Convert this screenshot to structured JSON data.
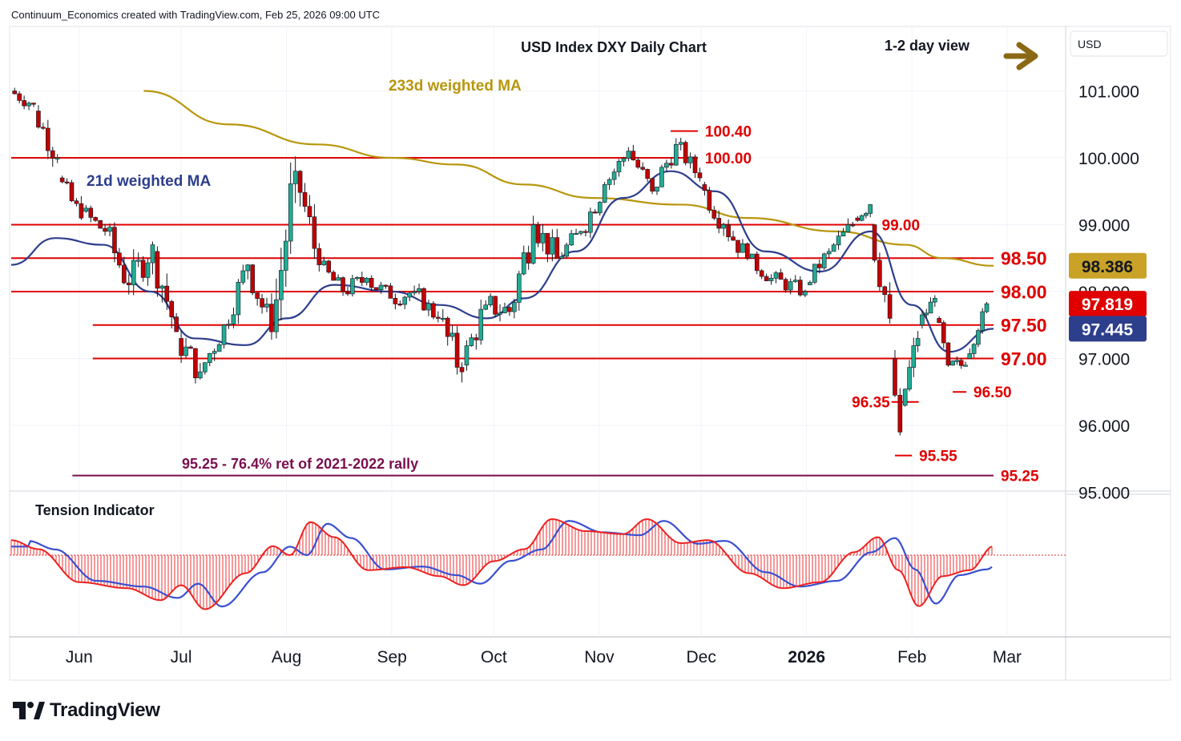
{
  "header": {
    "attribution": "Continuum_Economics created with TradingView.com, Feb 25, 2026 09:00 UTC"
  },
  "chart": {
    "title": "USD Index DXY Daily Chart",
    "view": "1-2 day view",
    "currency": "USD",
    "ma233_label": "233d weighted MA",
    "ma21_label": "21d weighted MA",
    "fib_label": "95.25 - 76.4% ret of 2021-2022 rally",
    "indicator_title": "Tension Indicator",
    "brand": "TradingView",
    "x_labels": [
      "Jun",
      "Jul",
      "Aug",
      "Sep",
      "Oct",
      "Nov",
      "Dec",
      "2026",
      "Feb",
      "Mar"
    ],
    "y_ticks": [
      "101.000",
      "100.000",
      "99.000",
      "98.000",
      "97.000",
      "96.000",
      "95.000"
    ],
    "badges": [
      {
        "label": "98.386",
        "value": 98.386,
        "color": "#c9a227",
        "text_color": "#131722"
      },
      {
        "label": "97.819",
        "value": 97.819,
        "color": "#e00000",
        "text_color": "#ffffff"
      },
      {
        "label": "97.445",
        "value": 97.445,
        "color": "#2d3e8c",
        "text_color": "#ffffff"
      }
    ],
    "colors": {
      "up": "#22ab94",
      "down": "#c10000",
      "ma233": "#b8960c",
      "ma21": "#2d3e8c",
      "levels": "#e00000",
      "fib": "#7a0f4e",
      "tension_hist": "#ee3333",
      "tension_line": "#ee2222",
      "tension_signal": "#3a4fd0",
      "arrow": "#8b6914"
    }
  },
  "chart_data": {
    "type": "candlestick",
    "title": "USD Index DXY Daily Chart",
    "y_unit": "USD",
    "ylim": [
      95.0,
      101.8
    ],
    "x_range": [
      "2025-05-12",
      "2026-02-25"
    ],
    "horizontal_levels": [
      {
        "value": 100.4,
        "label": "100.40",
        "from": "2025-11-22",
        "to": "2025-11-30"
      },
      {
        "value": 100.0,
        "label": "100.00",
        "from": "2025-05-12",
        "to": "2025-11-30"
      },
      {
        "value": 99.0,
        "label": "99.00",
        "from": "2025-05-12",
        "to": "2026-01-21"
      },
      {
        "value": 98.5,
        "label": "98.50",
        "from": "2025-05-12",
        "to": "2026-02-25"
      },
      {
        "value": 98.0,
        "label": "98.00",
        "from": "2025-05-12",
        "to": "2026-02-25"
      },
      {
        "value": 97.5,
        "label": "97.50",
        "from": "2025-06-05",
        "to": "2026-02-25"
      },
      {
        "value": 97.0,
        "label": "97.00",
        "from": "2025-06-05",
        "to": "2026-02-25"
      },
      {
        "value": 96.5,
        "label": "96.50",
        "from": "2026-02-13",
        "to": "2026-02-17"
      },
      {
        "value": 96.35,
        "label": "96.35",
        "from": "2026-01-26",
        "to": "2026-02-03"
      },
      {
        "value": 95.55,
        "label": "95.55",
        "from": "2026-01-27",
        "to": "2026-02-01"
      },
      {
        "value": 95.25,
        "label": "95.25",
        "from": "2025-05-30",
        "to": "2026-02-25"
      }
    ],
    "fib_note": "95.25 - 76.4% ret of 2021-2022 rally",
    "ma233": {
      "name": "233d weighted MA",
      "points": [
        [
          "2025-06-20",
          101.0
        ],
        [
          "2025-07-15",
          100.5
        ],
        [
          "2025-08-10",
          100.2
        ],
        [
          "2025-09-01",
          100.0
        ],
        [
          "2025-09-20",
          99.9
        ],
        [
          "2025-10-10",
          99.6
        ],
        [
          "2025-10-30",
          99.4
        ],
        [
          "2025-11-25",
          99.3
        ],
        [
          "2025-12-15",
          99.1
        ],
        [
          "2026-01-10",
          98.9
        ],
        [
          "2026-01-30",
          98.7
        ],
        [
          "2026-02-10",
          98.5
        ],
        [
          "2026-02-25",
          98.386
        ]
      ]
    },
    "ma21": {
      "name": "21d weighted MA",
      "points": [
        [
          "2025-05-12",
          98.4
        ],
        [
          "2025-05-25",
          98.8
        ],
        [
          "2025-06-08",
          98.7
        ],
        [
          "2025-06-22",
          98.0
        ],
        [
          "2025-07-05",
          97.3
        ],
        [
          "2025-07-20",
          97.2
        ],
        [
          "2025-08-01",
          97.6
        ],
        [
          "2025-08-15",
          98.1
        ],
        [
          "2025-09-01",
          98.0
        ],
        [
          "2025-09-15",
          97.8
        ],
        [
          "2025-09-29",
          97.6
        ],
        [
          "2025-10-10",
          97.9
        ],
        [
          "2025-10-25",
          98.6
        ],
        [
          "2025-11-08",
          99.4
        ],
        [
          "2025-11-22",
          99.8
        ],
        [
          "2025-12-05",
          99.5
        ],
        [
          "2025-12-20",
          98.6
        ],
        [
          "2026-01-05",
          98.3
        ],
        [
          "2026-01-20",
          98.9
        ],
        [
          "2026-02-01",
          97.8
        ],
        [
          "2026-02-12",
          97.1
        ],
        [
          "2026-02-25",
          97.445
        ]
      ]
    },
    "ohlc_approx": [
      [
        "2025-05-13",
        101.0,
        101.3,
        100.6,
        100.8
      ],
      [
        "2025-05-20",
        100.7,
        100.9,
        99.8,
        100.0
      ],
      [
        "2025-05-27",
        99.7,
        99.9,
        98.9,
        99.1
      ],
      [
        "2025-06-03",
        99.2,
        99.4,
        98.6,
        98.9
      ],
      [
        "2025-06-10",
        98.9,
        99.1,
        97.7,
        98.1
      ],
      [
        "2025-06-17",
        98.1,
        99.3,
        97.8,
        98.7
      ],
      [
        "2025-06-24",
        98.6,
        98.8,
        97.0,
        97.4
      ],
      [
        "2025-07-01",
        97.3,
        97.6,
        96.3,
        96.8
      ],
      [
        "2025-07-08",
        96.8,
        97.8,
        96.6,
        97.5
      ],
      [
        "2025-07-15",
        97.5,
        98.6,
        97.4,
        98.4
      ],
      [
        "2025-07-22",
        98.4,
        98.6,
        97.1,
        97.4
      ],
      [
        "2025-07-29",
        97.4,
        100.2,
        97.3,
        99.8
      ],
      [
        "2025-08-05",
        99.8,
        100.0,
        98.2,
        98.4
      ],
      [
        "2025-08-12",
        98.4,
        98.6,
        97.8,
        98.0
      ],
      [
        "2025-08-19",
        98.0,
        98.4,
        97.6,
        98.2
      ],
      [
        "2025-08-26",
        98.2,
        98.6,
        97.7,
        97.9
      ],
      [
        "2025-09-02",
        97.9,
        98.4,
        97.6,
        98.0
      ],
      [
        "2025-09-09",
        98.0,
        98.2,
        97.4,
        97.6
      ],
      [
        "2025-09-16",
        97.6,
        97.8,
        96.2,
        96.8
      ],
      [
        "2025-09-23",
        96.9,
        98.1,
        96.8,
        97.8
      ],
      [
        "2025-09-30",
        97.8,
        98.6,
        97.5,
        97.7
      ],
      [
        "2025-10-07",
        97.7,
        99.4,
        97.6,
        99.0
      ],
      [
        "2025-10-14",
        99.0,
        99.2,
        98.0,
        98.5
      ],
      [
        "2025-10-21",
        98.5,
        99.2,
        98.4,
        98.9
      ],
      [
        "2025-10-28",
        98.9,
        99.8,
        98.8,
        99.6
      ],
      [
        "2025-11-04",
        99.6,
        100.3,
        99.5,
        100.1
      ],
      [
        "2025-11-11",
        100.1,
        100.2,
        99.3,
        99.5
      ],
      [
        "2025-11-18",
        99.5,
        100.4,
        99.4,
        100.2
      ],
      [
        "2025-11-25",
        100.2,
        100.3,
        99.5,
        99.7
      ],
      [
        "2025-12-02",
        99.6,
        99.8,
        98.8,
        99.0
      ],
      [
        "2025-12-09",
        99.0,
        99.2,
        98.3,
        98.5
      ],
      [
        "2025-12-16",
        98.5,
        98.6,
        97.9,
        98.2
      ],
      [
        "2025-12-23",
        98.2,
        98.5,
        97.8,
        98.0
      ],
      [
        "2026-01-02",
        98.1,
        98.8,
        98.1,
        98.6
      ],
      [
        "2026-01-09",
        98.6,
        99.4,
        98.6,
        99.0
      ],
      [
        "2026-01-16",
        99.1,
        99.5,
        98.8,
        99.3
      ],
      [
        "2026-01-21",
        99.0,
        99.0,
        97.4,
        97.6
      ],
      [
        "2026-01-27",
        97.0,
        97.2,
        95.55,
        95.9
      ],
      [
        "2026-01-30",
        96.3,
        97.6,
        96.2,
        97.3
      ],
      [
        "2026-02-04",
        97.5,
        98.0,
        97.4,
        97.9
      ],
      [
        "2026-02-09",
        97.6,
        97.7,
        96.7,
        96.9
      ],
      [
        "2026-02-13",
        96.9,
        97.1,
        96.5,
        96.9
      ],
      [
        "2026-02-18",
        97.0,
        97.8,
        97.0,
        97.7
      ],
      [
        "2026-02-23",
        97.7,
        98.05,
        97.4,
        97.819
      ]
    ],
    "tension_indicator": {
      "name": "Tension Indicator",
      "note": "oscillator around zero; values read approximately",
      "points": [
        [
          "2025-05-12",
          0.25
        ],
        [
          "2025-05-20",
          0.1
        ],
        [
          "2025-06-01",
          -0.45
        ],
        [
          "2025-06-15",
          -0.55
        ],
        [
          "2025-06-25",
          -0.75
        ],
        [
          "2025-07-01",
          -0.5
        ],
        [
          "2025-07-08",
          -0.9
        ],
        [
          "2025-07-20",
          -0.3
        ],
        [
          "2025-07-28",
          0.15
        ],
        [
          "2025-08-02",
          0.0
        ],
        [
          "2025-08-08",
          0.55
        ],
        [
          "2025-08-15",
          0.3
        ],
        [
          "2025-08-25",
          -0.25
        ],
        [
          "2025-09-05",
          -0.2
        ],
        [
          "2025-09-15",
          -0.35
        ],
        [
          "2025-09-22",
          -0.5
        ],
        [
          "2025-10-01",
          -0.1
        ],
        [
          "2025-10-10",
          0.1
        ],
        [
          "2025-10-18",
          0.6
        ],
        [
          "2025-10-28",
          0.4
        ],
        [
          "2025-11-08",
          0.35
        ],
        [
          "2025-11-15",
          0.6
        ],
        [
          "2025-11-25",
          0.2
        ],
        [
          "2025-12-03",
          0.25
        ],
        [
          "2025-12-15",
          -0.3
        ],
        [
          "2025-12-25",
          -0.55
        ],
        [
          "2026-01-05",
          -0.45
        ],
        [
          "2026-01-15",
          0.05
        ],
        [
          "2026-01-22",
          0.3
        ],
        [
          "2026-01-28",
          -0.25
        ],
        [
          "2026-02-03",
          -0.85
        ],
        [
          "2026-02-10",
          -0.35
        ],
        [
          "2026-02-18",
          -0.25
        ],
        [
          "2026-02-25",
          0.15
        ]
      ]
    }
  }
}
